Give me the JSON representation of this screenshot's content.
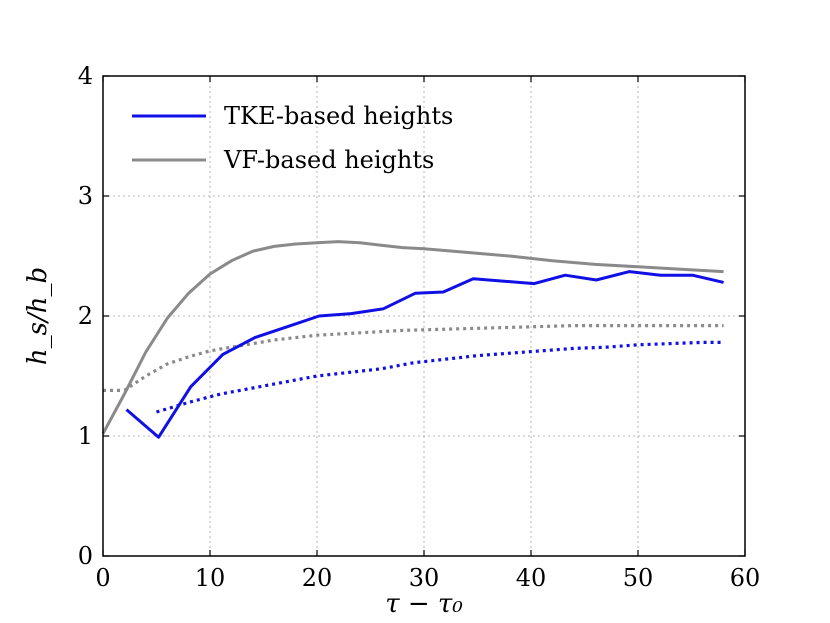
{
  "chart_data": {
    "type": "line",
    "title": "",
    "xlabel": "τ − τ₀",
    "ylabel": "h_s/h_b",
    "xlim": [
      0,
      60
    ],
    "ylim": [
      0,
      4
    ],
    "xticks": [
      "0",
      "10",
      "20",
      "30",
      "40",
      "50",
      "60"
    ],
    "yticks": [
      "0",
      "1",
      "2",
      "3",
      "4"
    ],
    "grid": true,
    "legend_position": "top-left",
    "series": [
      {
        "name": "TKE-based heights",
        "style": "solid",
        "color": "#1010e6",
        "in_legend": true,
        "x": [
          2.2,
          5.2,
          8.2,
          11.2,
          14.2,
          17.2,
          20.2,
          23.2,
          26.2,
          29.2,
          31.8,
          34.6,
          37.5,
          40.3,
          43.2,
          46.1,
          49.2,
          52.1,
          55.1,
          58.0
        ],
        "y": [
          1.22,
          0.99,
          1.41,
          1.68,
          1.82,
          1.91,
          2.0,
          2.02,
          2.06,
          2.19,
          2.2,
          2.31,
          2.29,
          2.27,
          2.34,
          2.3,
          2.37,
          2.34,
          2.34,
          2.28
        ]
      },
      {
        "name": "VF-based heights",
        "style": "solid",
        "color": "#8a8a8a",
        "in_legend": true,
        "x": [
          0,
          2,
          4,
          6,
          8,
          10,
          12,
          14,
          16,
          18,
          20,
          22,
          24,
          26,
          28,
          30,
          34,
          38,
          42,
          46,
          50,
          54,
          58
        ],
        "y": [
          1.02,
          1.35,
          1.7,
          1.98,
          2.19,
          2.35,
          2.46,
          2.54,
          2.58,
          2.6,
          2.61,
          2.62,
          2.61,
          2.59,
          2.57,
          2.56,
          2.53,
          2.5,
          2.46,
          2.43,
          2.41,
          2.39,
          2.37
        ]
      },
      {
        "name": "TKE-based heights (dotted)",
        "style": "dotted",
        "color": "#1010e6",
        "in_legend": false,
        "x": [
          5,
          8,
          11,
          14,
          17,
          20,
          23,
          26,
          29,
          32,
          35,
          38,
          41,
          44,
          47,
          50,
          53,
          56,
          58
        ],
        "y": [
          1.2,
          1.28,
          1.35,
          1.4,
          1.45,
          1.5,
          1.53,
          1.56,
          1.61,
          1.64,
          1.67,
          1.69,
          1.71,
          1.73,
          1.74,
          1.76,
          1.77,
          1.78,
          1.78
        ]
      },
      {
        "name": "VF-based heights (dotted)",
        "style": "dotted",
        "color": "#8a8a8a",
        "in_legend": false,
        "x": [
          0,
          2,
          4,
          6,
          8,
          10,
          12,
          14,
          16,
          18,
          20,
          24,
          28,
          32,
          36,
          40,
          44,
          48,
          52,
          56,
          58
        ],
        "y": [
          1.38,
          1.38,
          1.5,
          1.6,
          1.66,
          1.71,
          1.74,
          1.77,
          1.8,
          1.82,
          1.84,
          1.86,
          1.88,
          1.89,
          1.9,
          1.91,
          1.92,
          1.92,
          1.92,
          1.92,
          1.92
        ]
      }
    ]
  }
}
